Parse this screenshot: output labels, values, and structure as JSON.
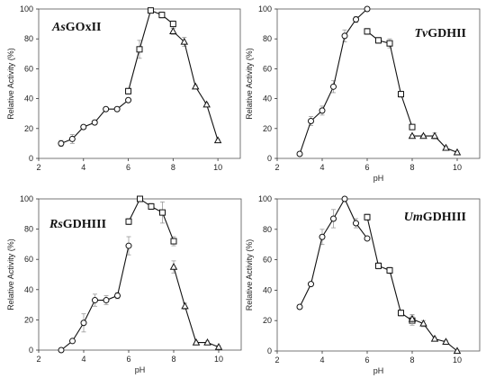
{
  "chart_data": [
    {
      "type": "line",
      "title_prefix": "As",
      "title_suffix": "GOxII",
      "xlabel": "",
      "ylabel": "Relative Activity (%)",
      "xlim": [
        2,
        11
      ],
      "ylim": [
        0,
        100
      ],
      "xticks": [
        2,
        4,
        6,
        8,
        10
      ],
      "yticks": [
        0,
        20,
        40,
        60,
        80,
        100
      ],
      "series": [
        {
          "marker": "circle",
          "x": [
            3,
            3.5,
            4,
            4.5,
            5,
            5.5,
            6
          ],
          "y": [
            10,
            13,
            21,
            24,
            33,
            33,
            39
          ],
          "err": [
            2,
            3,
            1,
            1,
            1,
            1,
            1
          ]
        },
        {
          "marker": "square",
          "x": [
            6,
            6.5,
            7,
            7.5,
            8
          ],
          "y": [
            45,
            73,
            99,
            96,
            90
          ],
          "err": [
            2,
            6,
            1,
            2,
            2
          ]
        },
        {
          "marker": "triangle",
          "x": [
            8,
            8.5,
            9,
            9.5,
            10
          ],
          "y": [
            85,
            78,
            48,
            36,
            12
          ],
          "err": [
            2,
            3,
            1,
            1,
            1
          ]
        }
      ]
    },
    {
      "type": "line",
      "title_prefix": "Tv",
      "title_suffix": "GDHII",
      "xlabel": "pH",
      "ylabel": "Relative Activity (%)",
      "xlim": [
        2,
        11
      ],
      "ylim": [
        0,
        100
      ],
      "xticks": [
        2,
        4,
        6,
        8,
        10
      ],
      "yticks": [
        0,
        20,
        40,
        60,
        80,
        100
      ],
      "series": [
        {
          "marker": "circle",
          "x": [
            3,
            3.5,
            4,
            4.5,
            5,
            5.5,
            6
          ],
          "y": [
            3,
            25,
            32,
            48,
            82,
            93,
            100
          ],
          "err": [
            1,
            3,
            3,
            4,
            4,
            2,
            1
          ]
        },
        {
          "marker": "square",
          "x": [
            6,
            6.5,
            7,
            7.5,
            8
          ],
          "y": [
            85,
            79,
            77,
            43,
            21
          ],
          "err": [
            2,
            2,
            3,
            2,
            1
          ]
        },
        {
          "marker": "triangle",
          "x": [
            8,
            8.5,
            9,
            9.5,
            10
          ],
          "y": [
            15,
            15,
            15,
            7,
            4
          ],
          "err": [
            1,
            1,
            2,
            1,
            1
          ]
        }
      ]
    },
    {
      "type": "line",
      "title_prefix": "Rs",
      "title_suffix": "GDHIII",
      "xlabel": "pH",
      "ylabel": "Relative Activity (%)",
      "xlim": [
        2,
        11
      ],
      "ylim": [
        0,
        100
      ],
      "xticks": [
        2,
        4,
        6,
        8,
        10
      ],
      "yticks": [
        0,
        20,
        40,
        60,
        80,
        100
      ],
      "series": [
        {
          "marker": "circle",
          "x": [
            3,
            3.5,
            4,
            4.5,
            5,
            5.5,
            6
          ],
          "y": [
            0,
            6,
            18,
            33,
            33,
            36,
            69
          ],
          "err": [
            1,
            1,
            6,
            4,
            3,
            2,
            6
          ]
        },
        {
          "marker": "square",
          "x": [
            6,
            6.5,
            7,
            7.5,
            8
          ],
          "y": [
            85,
            100,
            95,
            91,
            72
          ],
          "err": [
            2,
            1,
            2,
            7,
            3
          ]
        },
        {
          "marker": "triangle",
          "x": [
            8,
            8.5,
            9,
            9.5,
            10
          ],
          "y": [
            55,
            29,
            5,
            5,
            2
          ],
          "err": [
            4,
            2,
            1,
            1,
            1
          ]
        }
      ]
    },
    {
      "type": "line",
      "title_prefix": "Um",
      "title_suffix": "GDHIII",
      "xlabel": "pH",
      "ylabel": "Relative Activity (%)",
      "xlim": [
        2,
        11
      ],
      "ylim": [
        0,
        100
      ],
      "xticks": [
        2,
        4,
        6,
        8,
        10
      ],
      "yticks": [
        0,
        20,
        40,
        60,
        80,
        100
      ],
      "series": [
        {
          "marker": "circle",
          "x": [
            3,
            3.5,
            4,
            4.5,
            5,
            5.5,
            6
          ],
          "y": [
            29,
            44,
            75,
            87,
            100,
            84,
            74
          ],
          "err": [
            1,
            1,
            5,
            6,
            1,
            3,
            1
          ]
        },
        {
          "marker": "square",
          "x": [
            6,
            6.5,
            7,
            7.5,
            8
          ],
          "y": [
            88,
            56,
            53,
            25,
            20
          ],
          "err": [
            2,
            2,
            2,
            2,
            3
          ]
        },
        {
          "marker": "triangle",
          "x": [
            8,
            8.5,
            9,
            9.5,
            10
          ],
          "y": [
            21,
            18,
            8,
            6,
            0
          ],
          "err": [
            3,
            2,
            1,
            1,
            1
          ]
        }
      ]
    }
  ]
}
